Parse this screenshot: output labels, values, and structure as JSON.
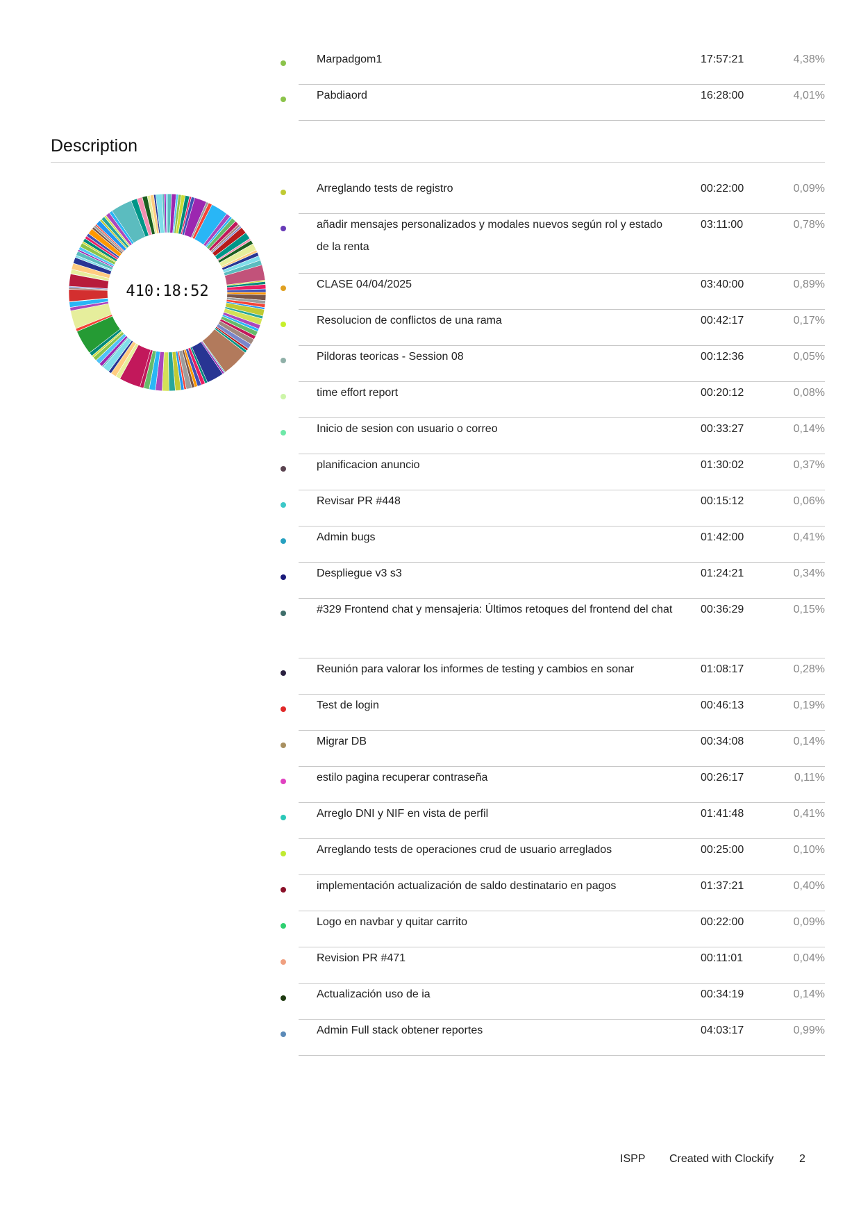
{
  "top_list": [
    {
      "name": "Marpadgom1",
      "time": "17:57:21",
      "pct": "4,38%",
      "color": "#8bc34a"
    },
    {
      "name": "Pabdiaord",
      "time": "16:28:00",
      "pct": "4,01%",
      "color": "#8bc34a"
    }
  ],
  "section_title": "Description",
  "donut": {
    "center_label": "410:18:52",
    "palette": [
      "#5bbcbf",
      "#9c27b0",
      "#4fc3f7",
      "#8bc34a",
      "#cddc39",
      "#00897b",
      "#e91e63",
      "#3f51b5",
      "#ff9800",
      "#795548",
      "#9e9e9e",
      "#f44336",
      "#2196f3",
      "#c0ca33",
      "#26a69a",
      "#d4e157",
      "#ab47bc",
      "#29b6f6",
      "#66bb6a",
      "#c2185b",
      "#a1887f",
      "#7986cb",
      "#b71c1c",
      "#009688",
      "#f48fb1",
      "#1b5e20",
      "#e6ee9c",
      "#ffcc80",
      "#283593",
      "#80deea"
    ],
    "highlights": [
      {
        "start": 0.905,
        "len": 0.035,
        "color": "#5bbcbf"
      },
      {
        "start": 0.045,
        "len": 0.02,
        "color": "#9c27b0"
      },
      {
        "start": 0.075,
        "len": 0.028,
        "color": "#29b6f6"
      },
      {
        "start": 0.205,
        "len": 0.025,
        "color": "#c2527a"
      },
      {
        "start": 0.355,
        "len": 0.045,
        "color": "#b27a5c"
      },
      {
        "start": 0.405,
        "len": 0.028,
        "color": "#283593"
      },
      {
        "start": 0.545,
        "len": 0.035,
        "color": "#c2185b"
      },
      {
        "start": 0.645,
        "len": 0.04,
        "color": "#259b34"
      },
      {
        "start": 0.69,
        "len": 0.03,
        "color": "#e6ee9c"
      },
      {
        "start": 0.735,
        "len": 0.02,
        "color": "#d32f2f"
      },
      {
        "start": 0.76,
        "len": 0.02,
        "color": "#b71c3c"
      }
    ]
  },
  "desc_list": [
    {
      "name": "Arreglando tests de registro",
      "time": "00:22:00",
      "pct": "0,09%",
      "color": "#c0ca33"
    },
    {
      "name": "añadir mensajes personalizados y modales nuevos según rol y estado de la renta",
      "time": "03:11:00",
      "pct": "0,78%",
      "color": "#673ab7"
    },
    {
      "name": "CLASE 04/04/2025",
      "time": "03:40:00",
      "pct": "0,89%",
      "color": "#e0a020"
    },
    {
      "name": "Resolucion de conflictos de una rama",
      "time": "00:42:17",
      "pct": "0,17%",
      "color": "#c6ef2a"
    },
    {
      "name": "Pildoras teoricas - Session 08",
      "time": "00:12:36",
      "pct": "0,05%",
      "color": "#8fb0a8"
    },
    {
      "name": "time effort report",
      "time": "00:20:12",
      "pct": "0,08%",
      "color": "#ccf5a8"
    },
    {
      "name": "Inicio de sesion con usuario o correo",
      "time": "00:33:27",
      "pct": "0,14%",
      "color": "#6ee8a8"
    },
    {
      "name": "planificacion anuncio",
      "time": "01:30:02",
      "pct": "0,37%",
      "color": "#5a4350"
    },
    {
      "name": "Revisar PR #448",
      "time": "00:15:12",
      "pct": "0,06%",
      "color": "#3cc8c8"
    },
    {
      "name": "Admin bugs",
      "time": "01:42:00",
      "pct": "0,41%",
      "color": "#26a0c0"
    },
    {
      "name": "Despliegue v3 s3",
      "time": "01:24:21",
      "pct": "0,34%",
      "color": "#1a1a7a"
    },
    {
      "name": "#329 Frontend chat y mensajeria: Últimos retoques del frontend del chat",
      "time": "00:36:29",
      "pct": "0,15%",
      "color": "#3e6e6a"
    },
    {
      "name": "Reunión para valorar los informes de testing y cambios en sonar",
      "time": "01:08:17",
      "pct": "0,28%",
      "color": "#2a2040"
    },
    {
      "name": "Test de login",
      "time": "00:46:13",
      "pct": "0,19%",
      "color": "#e02828"
    },
    {
      "name": "Migrar DB",
      "time": "00:34:08",
      "pct": "0,14%",
      "color": "#a89060"
    },
    {
      "name": "estilo pagina recuperar contraseña",
      "time": "00:26:17",
      "pct": "0,11%",
      "color": "#e040c0"
    },
    {
      "name": "Arreglo DNI y NIF en vista de perfil",
      "time": "01:41:48",
      "pct": "0,41%",
      "color": "#2ac8b8"
    },
    {
      "name": "Arreglando tests de operaciones crud de usuario arreglados",
      "time": "00:25:00",
      "pct": "0,10%",
      "color": "#c0ea30"
    },
    {
      "name": "implementación actualización de saldo destinatario en pagos",
      "time": "01:37:21",
      "pct": "0,40%",
      "color": "#8a1028"
    },
    {
      "name": "Logo en navbar y quitar carrito",
      "time": "00:22:00",
      "pct": "0,09%",
      "color": "#2ed070"
    },
    {
      "name": "Revision PR #471",
      "time": "00:11:01",
      "pct": "0,04%",
      "color": "#f0a080"
    },
    {
      "name": "Actualización uso de ia",
      "time": "00:34:19",
      "pct": "0,14%",
      "color": "#1e3a10"
    },
    {
      "name": "Admin Full stack obtener reportes",
      "time": "04:03:17",
      "pct": "0,99%",
      "color": "#5a8ab8"
    }
  ],
  "footer": {
    "workspace": "ISPP",
    "created_with": "Created with Clockify",
    "page": "2"
  }
}
